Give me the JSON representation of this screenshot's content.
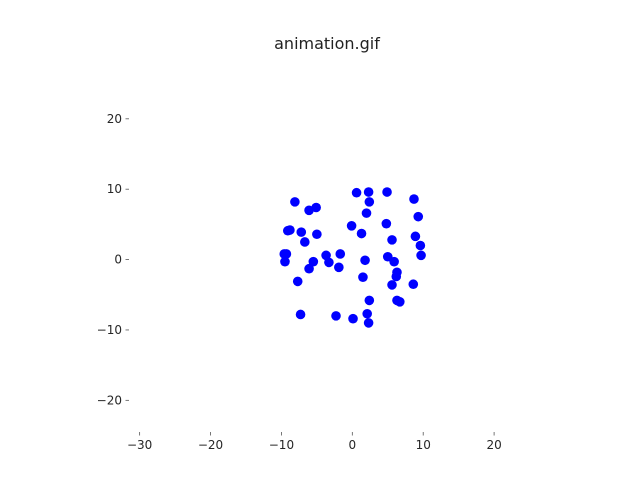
{
  "chart_data": {
    "type": "scatter",
    "title": "animation.gif",
    "xlabel": "",
    "ylabel": "",
    "xlim": [
      -31.5,
      24.5
    ],
    "ylim": [
      -24.5,
      28.5
    ],
    "xticks": [
      -30,
      -20,
      -10,
      0,
      10,
      20
    ],
    "xtick_labels": [
      "−30",
      "−20",
      "−10",
      "0",
      "10",
      "20"
    ],
    "yticks": [
      -20,
      -10,
      0,
      10,
      20
    ],
    "ytick_labels": [
      "−20",
      "−10",
      "0",
      "10",
      "20"
    ],
    "grid": false,
    "colors": {
      "points": "#0000ff",
      "text": "#262626"
    },
    "points": [
      {
        "x": -8.1,
        "y": 8.2
      },
      {
        "x": -6.1,
        "y": 7.0
      },
      {
        "x": -5.1,
        "y": 7.4
      },
      {
        "x": 0.6,
        "y": 9.5
      },
      {
        "x": 2.3,
        "y": 9.6
      },
      {
        "x": 4.9,
        "y": 9.6
      },
      {
        "x": 8.7,
        "y": 8.6
      },
      {
        "x": 2.4,
        "y": 8.2
      },
      {
        "x": 9.3,
        "y": 6.1
      },
      {
        "x": 2.0,
        "y": 6.6
      },
      {
        "x": -0.1,
        "y": 4.8
      },
      {
        "x": 4.8,
        "y": 5.1
      },
      {
        "x": -9.1,
        "y": 4.1
      },
      {
        "x": -8.8,
        "y": 4.2
      },
      {
        "x": -7.2,
        "y": 3.9
      },
      {
        "x": -5.0,
        "y": 3.6
      },
      {
        "x": 1.3,
        "y": 3.7
      },
      {
        "x": 8.9,
        "y": 3.3
      },
      {
        "x": -6.7,
        "y": 2.5
      },
      {
        "x": 5.6,
        "y": 2.8
      },
      {
        "x": 9.6,
        "y": 2.0
      },
      {
        "x": -9.6,
        "y": 0.8
      },
      {
        "x": -9.3,
        "y": 0.8
      },
      {
        "x": -3.7,
        "y": 0.6
      },
      {
        "x": -1.7,
        "y": 0.8
      },
      {
        "x": 5.0,
        "y": 0.4
      },
      {
        "x": 9.7,
        "y": 0.6
      },
      {
        "x": -9.5,
        "y": -0.3
      },
      {
        "x": -5.5,
        "y": -0.3
      },
      {
        "x": -3.3,
        "y": -0.4
      },
      {
        "x": 1.8,
        "y": -0.1
      },
      {
        "x": 5.9,
        "y": -0.3
      },
      {
        "x": -6.1,
        "y": -1.3
      },
      {
        "x": -1.9,
        "y": -1.1
      },
      {
        "x": 6.3,
        "y": -1.8
      },
      {
        "x": 1.5,
        "y": -2.5
      },
      {
        "x": 6.2,
        "y": -2.4
      },
      {
        "x": -7.7,
        "y": -3.1
      },
      {
        "x": 5.6,
        "y": -3.6
      },
      {
        "x": 8.6,
        "y": -3.5
      },
      {
        "x": 2.4,
        "y": -5.8
      },
      {
        "x": 6.3,
        "y": -5.8
      },
      {
        "x": 6.7,
        "y": -6.0
      },
      {
        "x": -7.3,
        "y": -7.8
      },
      {
        "x": -2.3,
        "y": -8.0
      },
      {
        "x": 0.1,
        "y": -8.4
      },
      {
        "x": 2.1,
        "y": -7.7
      },
      {
        "x": 2.3,
        "y": -9.0
      }
    ]
  }
}
